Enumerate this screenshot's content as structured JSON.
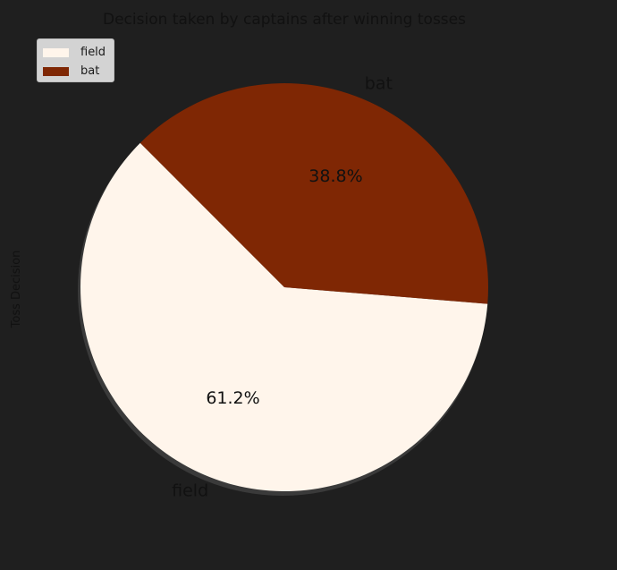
{
  "chart_data": {
    "type": "pie",
    "title": "Decision taken by captains after winning tosses",
    "ylabel": "Toss Decision",
    "slices": [
      {
        "label": "field",
        "value": 61.2,
        "pct_label": "61.2%",
        "color": "#fff5eb"
      },
      {
        "label": "bat",
        "value": 38.8,
        "pct_label": "38.8%",
        "color": "#7f2704"
      }
    ],
    "start_angle_deg": 135,
    "shadow": true,
    "legend": {
      "position": "upper-left",
      "entries": [
        "field",
        "bat"
      ]
    }
  },
  "colors": {
    "background": "#1f1f1f",
    "text": "#111111",
    "shadow": "#3a3a3a"
  }
}
